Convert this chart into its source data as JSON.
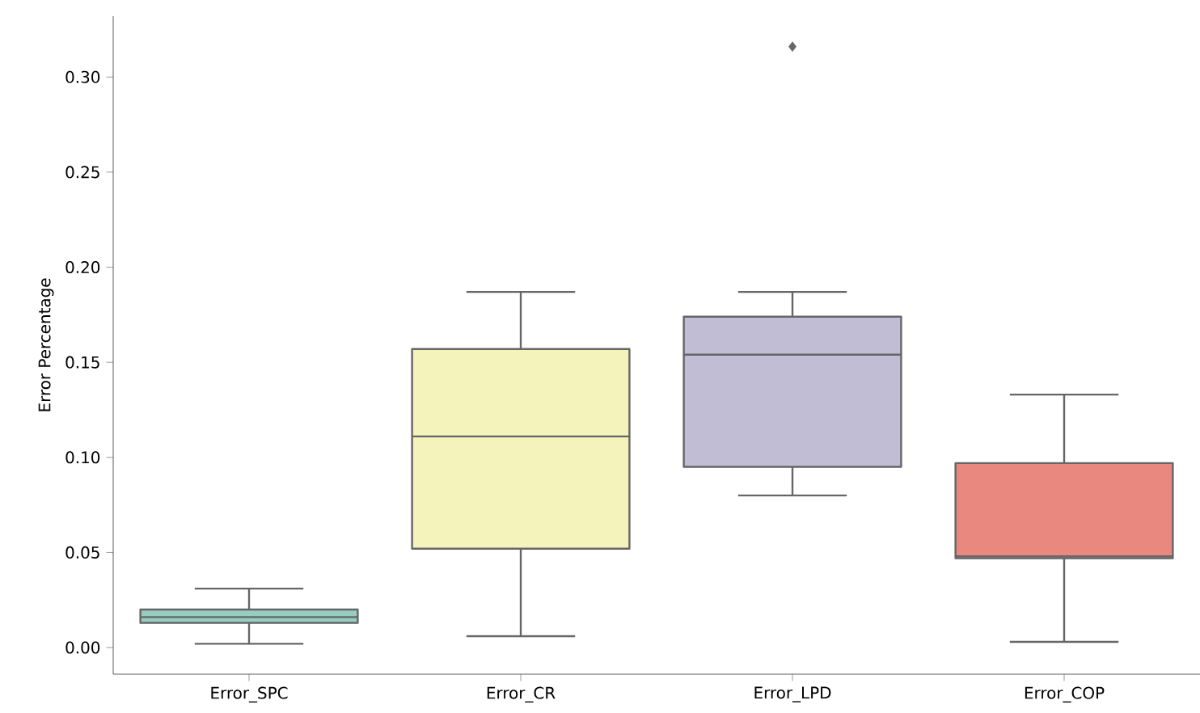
{
  "chart_data": {
    "type": "box",
    "ylabel": "Error Percentage",
    "categories": [
      "Error_SPC",
      "Error_CR",
      "Error_LPD",
      "Error_COP"
    ],
    "colors": [
      "#96cdc2",
      "#f3f3bb",
      "#c0bdd5",
      "#e8887e"
    ],
    "boxes": [
      {
        "low": 0.002,
        "q1": 0.013,
        "median": 0.016,
        "q3": 0.02,
        "high": 0.031
      },
      {
        "low": 0.006,
        "q1": 0.052,
        "median": 0.111,
        "q3": 0.157,
        "high": 0.187
      },
      {
        "low": 0.08,
        "q1": 0.095,
        "median": 0.154,
        "q3": 0.174,
        "high": 0.187,
        "outliers": [
          0.316
        ]
      },
      {
        "low": 0.003,
        "q1": 0.047,
        "median": 0.048,
        "q3": 0.097,
        "high": 0.133
      }
    ],
    "ylim": [
      -0.014,
      0.332
    ],
    "yticks": [
      {
        "value": 0,
        "label": "0.00"
      },
      {
        "value": 0.05,
        "label": "0.05"
      },
      {
        "value": 0.1,
        "label": "0.10"
      },
      {
        "value": 0.15,
        "label": "0.15"
      },
      {
        "value": 0.2,
        "label": "0.20"
      },
      {
        "value": 0.25,
        "label": "0.25"
      },
      {
        "value": 0.3,
        "label": "0.30"
      }
    ],
    "grid": false
  }
}
